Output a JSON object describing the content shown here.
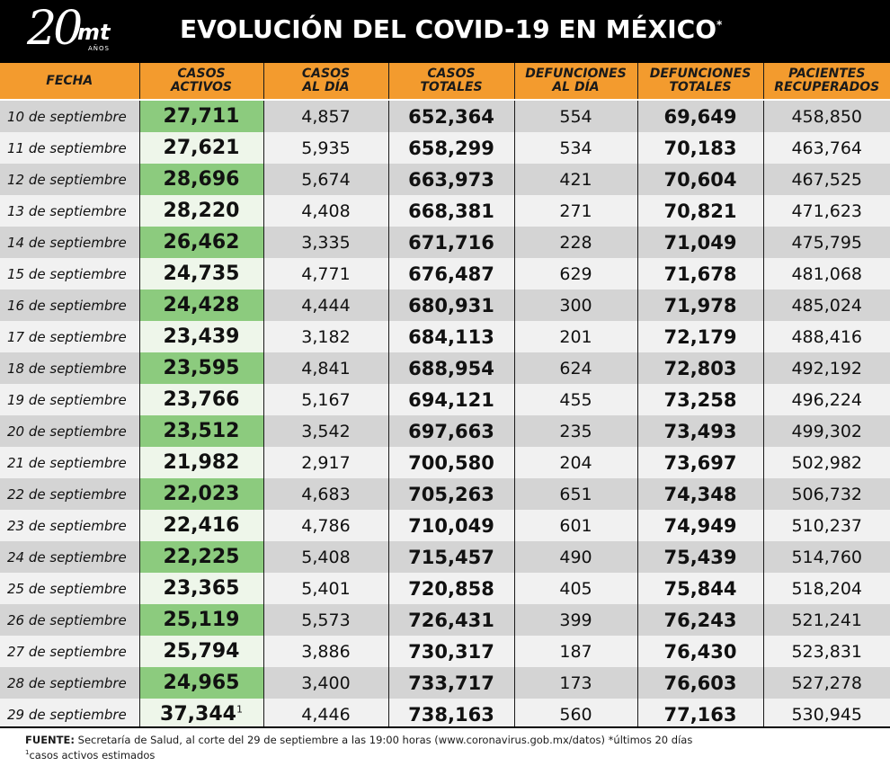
{
  "logo": {
    "number": "20",
    "brand": "mt",
    "sub": "AÑOS"
  },
  "title": "EVOLUCIÓN DEL COVID-19 EN MÉXICO",
  "title_mark": "*",
  "colors": {
    "header_bg": "#000000",
    "column_header_bg": "#f39b2e",
    "active_cases_highlight": "#8ccb7e",
    "row_dark": "#d4d4d4",
    "row_light": "#f1f1f1"
  },
  "columns": [
    [
      "FECHA"
    ],
    [
      "CASOS",
      "ACTIVOS"
    ],
    [
      "CASOS",
      "AL DÍA"
    ],
    [
      "CASOS",
      "TOTALES"
    ],
    [
      "DEFUNCIONES",
      "AL DÍA"
    ],
    [
      "DEFUNCIONES",
      "TOTALES"
    ],
    [
      "PACIENTES",
      "RECUPERADOS"
    ]
  ],
  "rows": [
    [
      "10 de septiembre",
      "27,711",
      "4,857",
      "652,364",
      "554",
      "69,649",
      "458,850"
    ],
    [
      "11 de septiembre",
      "27,621",
      "5,935",
      "658,299",
      "534",
      "70,183",
      "463,764"
    ],
    [
      "12 de septiembre",
      "28,696",
      "5,674",
      "663,973",
      "421",
      "70,604",
      "467,525"
    ],
    [
      "13 de septiembre",
      "28,220",
      "4,408",
      "668,381",
      "271",
      "70,821",
      "471,623"
    ],
    [
      "14 de septiembre",
      "26,462",
      "3,335",
      "671,716",
      "228",
      "71,049",
      "475,795"
    ],
    [
      "15 de septiembre",
      "24,735",
      "4,771",
      "676,487",
      "629",
      "71,678",
      "481,068"
    ],
    [
      "16 de septiembre",
      "24,428",
      "4,444",
      "680,931",
      "300",
      "71,978",
      "485,024"
    ],
    [
      "17 de septiembre",
      "23,439",
      "3,182",
      "684,113",
      "201",
      "72,179",
      "488,416"
    ],
    [
      "18 de septiembre",
      "23,595",
      "4,841",
      "688,954",
      "624",
      "72,803",
      "492,192"
    ],
    [
      "19 de septiembre",
      "23,766",
      "5,167",
      "694,121",
      "455",
      "73,258",
      "496,224"
    ],
    [
      "20 de septiembre",
      "23,512",
      "3,542",
      "697,663",
      "235",
      "73,493",
      "499,302"
    ],
    [
      "21 de septiembre",
      "21,982",
      "2,917",
      "700,580",
      "204",
      "73,697",
      "502,982"
    ],
    [
      "22 de septiembre",
      "22,023",
      "4,683",
      "705,263",
      "651",
      "74,348",
      "506,732"
    ],
    [
      "23 de septiembre",
      "22,416",
      "4,786",
      "710,049",
      "601",
      "74,949",
      "510,237"
    ],
    [
      "24 de septiembre",
      "22,225",
      "5,408",
      "715,457",
      "490",
      "75,439",
      "514,760"
    ],
    [
      "25 de septiembre",
      "23,365",
      "5,401",
      "720,858",
      "405",
      "75,844",
      "518,204"
    ],
    [
      "26 de septiembre",
      "25,119",
      "5,573",
      "726,431",
      "399",
      "76,243",
      "521,241"
    ],
    [
      "27 de septiembre",
      "25,794",
      "3,886",
      "730,317",
      "187",
      "76,430",
      "523,831"
    ],
    [
      "28 de septiembre",
      "24,965",
      "3,400",
      "733,717",
      "173",
      "76,603",
      "527,278"
    ],
    [
      "29 de septiembre",
      "37,344",
      "4,446",
      "738,163",
      "560",
      "77,163",
      "530,945"
    ]
  ],
  "last_row_active_mark": "1",
  "footer": {
    "fuente_label": "FUENTE:",
    "fuente_text": " Secretaría de Salud, al corte del 29 de septiembre a las 19:00 horas (www.coronavirus.gob.mx/datos) *últimos 20 días",
    "note_mark": "1",
    "note_text": "casos activos estimados"
  }
}
